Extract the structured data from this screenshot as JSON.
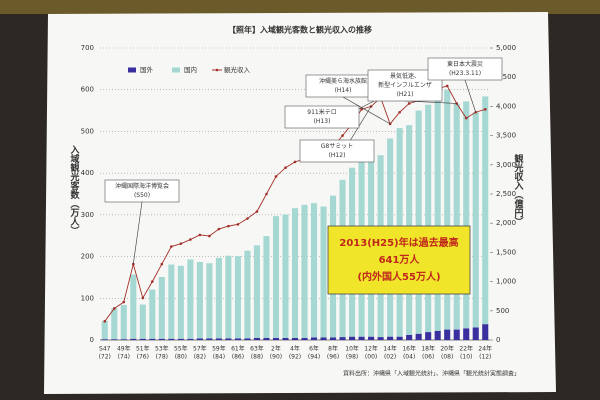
{
  "chart_data": {
    "type": "bar",
    "title": "【照年】入域観光客数と観光収入の推移",
    "y_label": "入域観光客数（万人）",
    "y2_label": "観光収入（億円）",
    "categories": [
      "S47",
      null,
      "49年",
      null,
      "51年",
      null,
      "53年",
      null,
      "55年",
      null,
      "57年",
      null,
      "59年",
      null,
      "61年",
      null,
      "63年",
      null,
      "2年",
      null,
      "4年",
      null,
      "6年",
      null,
      "8年",
      null,
      "10年",
      null,
      "12年",
      null,
      "14年",
      null,
      "16年",
      null,
      "18年",
      null,
      "20年",
      null,
      "22年",
      null,
      "24年"
    ],
    "category_sublabels": [
      "(72)",
      null,
      "(74)",
      null,
      "(76)",
      null,
      "(78)",
      null,
      "(80)",
      null,
      "(82)",
      null,
      "(84)",
      null,
      "(86)",
      null,
      "(88)",
      null,
      "(90)",
      null,
      "(92)",
      null,
      "(94)",
      null,
      "(96)",
      null,
      "(98)",
      null,
      "(00)",
      null,
      "(02)",
      null,
      "(04)",
      null,
      "(06)",
      null,
      "(08)",
      null,
      "(10)",
      null,
      "(12)"
    ],
    "series": [
      {
        "name": "国外",
        "color": "#3a2f9e",
        "values": [
          2,
          2,
          2,
          3,
          3,
          3,
          3,
          3,
          3,
          3,
          4,
          4,
          4,
          4,
          4,
          4,
          5,
          5,
          5,
          5,
          5,
          5,
          6,
          6,
          6,
          7,
          8,
          8,
          8,
          7,
          8,
          8,
          12,
          15,
          19,
          22,
          25,
          25,
          28,
          30,
          38
        ]
      },
      {
        "name": "国内",
        "color": "#a6d8d3",
        "values": [
          44,
          74,
          82,
          154,
          82,
          118,
          148,
          178,
          175,
          190,
          183,
          180,
          193,
          198,
          197,
          210,
          222,
          244,
          292,
          296,
          311,
          319,
          322,
          314,
          340,
          377,
          405,
          448,
          443,
          436,
          475,
          500,
          503,
          535,
          545,
          560,
          575,
          541,
          544,
          516,
          546
        ]
      },
      {
        "name": "観光収入",
        "type": "line",
        "axis": "y2",
        "color": "#a3302a",
        "values": [
          320,
          540,
          650,
          1300,
          720,
          1000,
          1300,
          1600,
          1650,
          1720,
          1800,
          1780,
          1900,
          1950,
          1980,
          2080,
          2200,
          2500,
          2800,
          2950,
          3050,
          3100,
          3150,
          3100,
          3300,
          3500,
          3700,
          3950,
          4000,
          4150,
          3700,
          3900,
          4050,
          4100,
          4200,
          4300,
          4350,
          4050,
          3800,
          3900,
          3950
        ]
      }
    ],
    "ylim": [
      0,
      700
    ],
    "yticks": [
      0,
      100,
      200,
      300,
      400,
      500,
      600,
      700
    ],
    "y2lim": [
      0,
      5000
    ],
    "y2ticks": [
      0,
      500,
      {
        "value": 1000,
        "label": "1,000"
      },
      {
        "value": 1500,
        "label": "1,500"
      },
      {
        "value": 2000,
        "label": "2,000"
      },
      {
        "value": 2500,
        "label": "2,500"
      },
      {
        "value": 3000,
        "label": "3,000"
      },
      {
        "value": 3500,
        "label": "3,500"
      },
      {
        "value": 4000,
        "label": "4,000"
      },
      {
        "value": 4500,
        "label": "4,500"
      },
      {
        "value": 5000,
        "label": "5,000"
      }
    ],
    "grid": true,
    "annotations": [
      {
        "lines": [
          "沖縄国際海洋博覧会",
          "(S50)"
        ]
      },
      {
        "lines": [
          "G8サミット",
          "(H12)"
        ]
      },
      {
        "lines": [
          "911米テロ",
          "(H13)"
        ]
      },
      {
        "lines": [
          "沖縄美ら海水族館",
          "(H14)"
        ]
      },
      {
        "lines": [
          "景気低迷、",
          "新型インフルエンザ",
          "(H21)"
        ]
      },
      {
        "lines": [
          "東日本大震災",
          "(H23.3.11)"
        ]
      }
    ],
    "highlight": [
      "2013(H25)年は過去最高",
      "641万人",
      "(内外国人55万人)"
    ],
    "source": "資料出所：沖縄県「入域観光統計」、沖縄県「観光統計実態調査」"
  }
}
